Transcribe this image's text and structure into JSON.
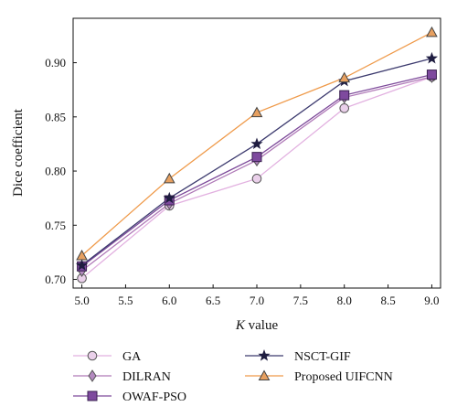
{
  "chart_data": {
    "type": "line",
    "xlabel_italic": "K",
    "xlabel_rest": " value",
    "ylabel": "Dice coefficient",
    "xlim": [
      4.9,
      9.1
    ],
    "ylim": [
      0.692,
      0.941
    ],
    "xticks": [
      5.0,
      5.5,
      6.0,
      6.5,
      7.0,
      7.5,
      8.0,
      8.5,
      9.0
    ],
    "xtick_labels": [
      "5.0",
      "5.5",
      "6.0",
      "6.5",
      "7.0",
      "7.5",
      "8.0",
      "8.5",
      "9.0"
    ],
    "yticks": [
      0.7,
      0.75,
      0.8,
      0.85,
      0.9
    ],
    "ytick_labels": [
      "0.70",
      "0.75",
      "0.80",
      "0.85",
      "0.90"
    ],
    "x": [
      5,
      6,
      7,
      8,
      9
    ],
    "legend_position": "below",
    "series": [
      {
        "name": "GA",
        "values": [
          0.701,
          0.768,
          0.793,
          0.858,
          0.887
        ],
        "color": "#e2b1e0",
        "marker": "circle",
        "marker_fill": "#ead0ea",
        "marker_stroke": "#555555"
      },
      {
        "name": "DILRAN",
        "values": [
          0.708,
          0.77,
          0.81,
          0.868,
          0.887
        ],
        "color": "#b07ab8",
        "marker": "diamond",
        "marker_fill": "#b48ac0",
        "marker_stroke": "#555555"
      },
      {
        "name": "OWAF-PSO",
        "values": [
          0.712,
          0.773,
          0.813,
          0.87,
          0.889
        ],
        "color": "#7d4a9a",
        "marker": "square",
        "marker_fill": "#7e4a9e",
        "marker_stroke": "#3a2050"
      },
      {
        "name": "NSCT-GIF",
        "values": [
          0.713,
          0.775,
          0.825,
          0.883,
          0.904
        ],
        "color": "#3c3a6e",
        "marker": "star",
        "marker_fill": "#1f1d40",
        "marker_stroke": "#1f1d40"
      },
      {
        "name": "Proposed UIFCNN",
        "values": [
          0.722,
          0.793,
          0.854,
          0.886,
          0.928
        ],
        "color": "#ef9a4a",
        "marker": "triangle",
        "marker_fill": "#e7a060",
        "marker_stroke": "#444444"
      }
    ]
  }
}
